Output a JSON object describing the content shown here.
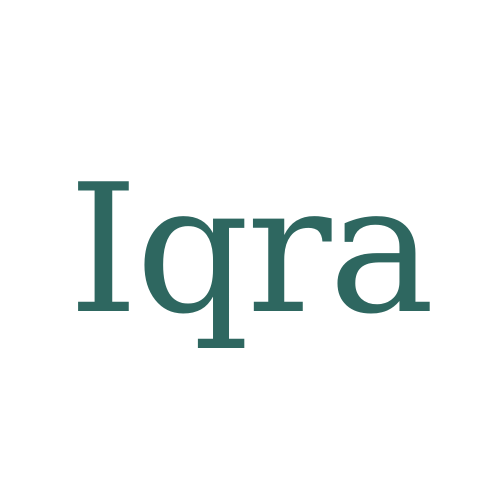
{
  "logo": {
    "wordmark": "Iqra",
    "color": "#2e6760"
  },
  "background_color": "#ffffff"
}
